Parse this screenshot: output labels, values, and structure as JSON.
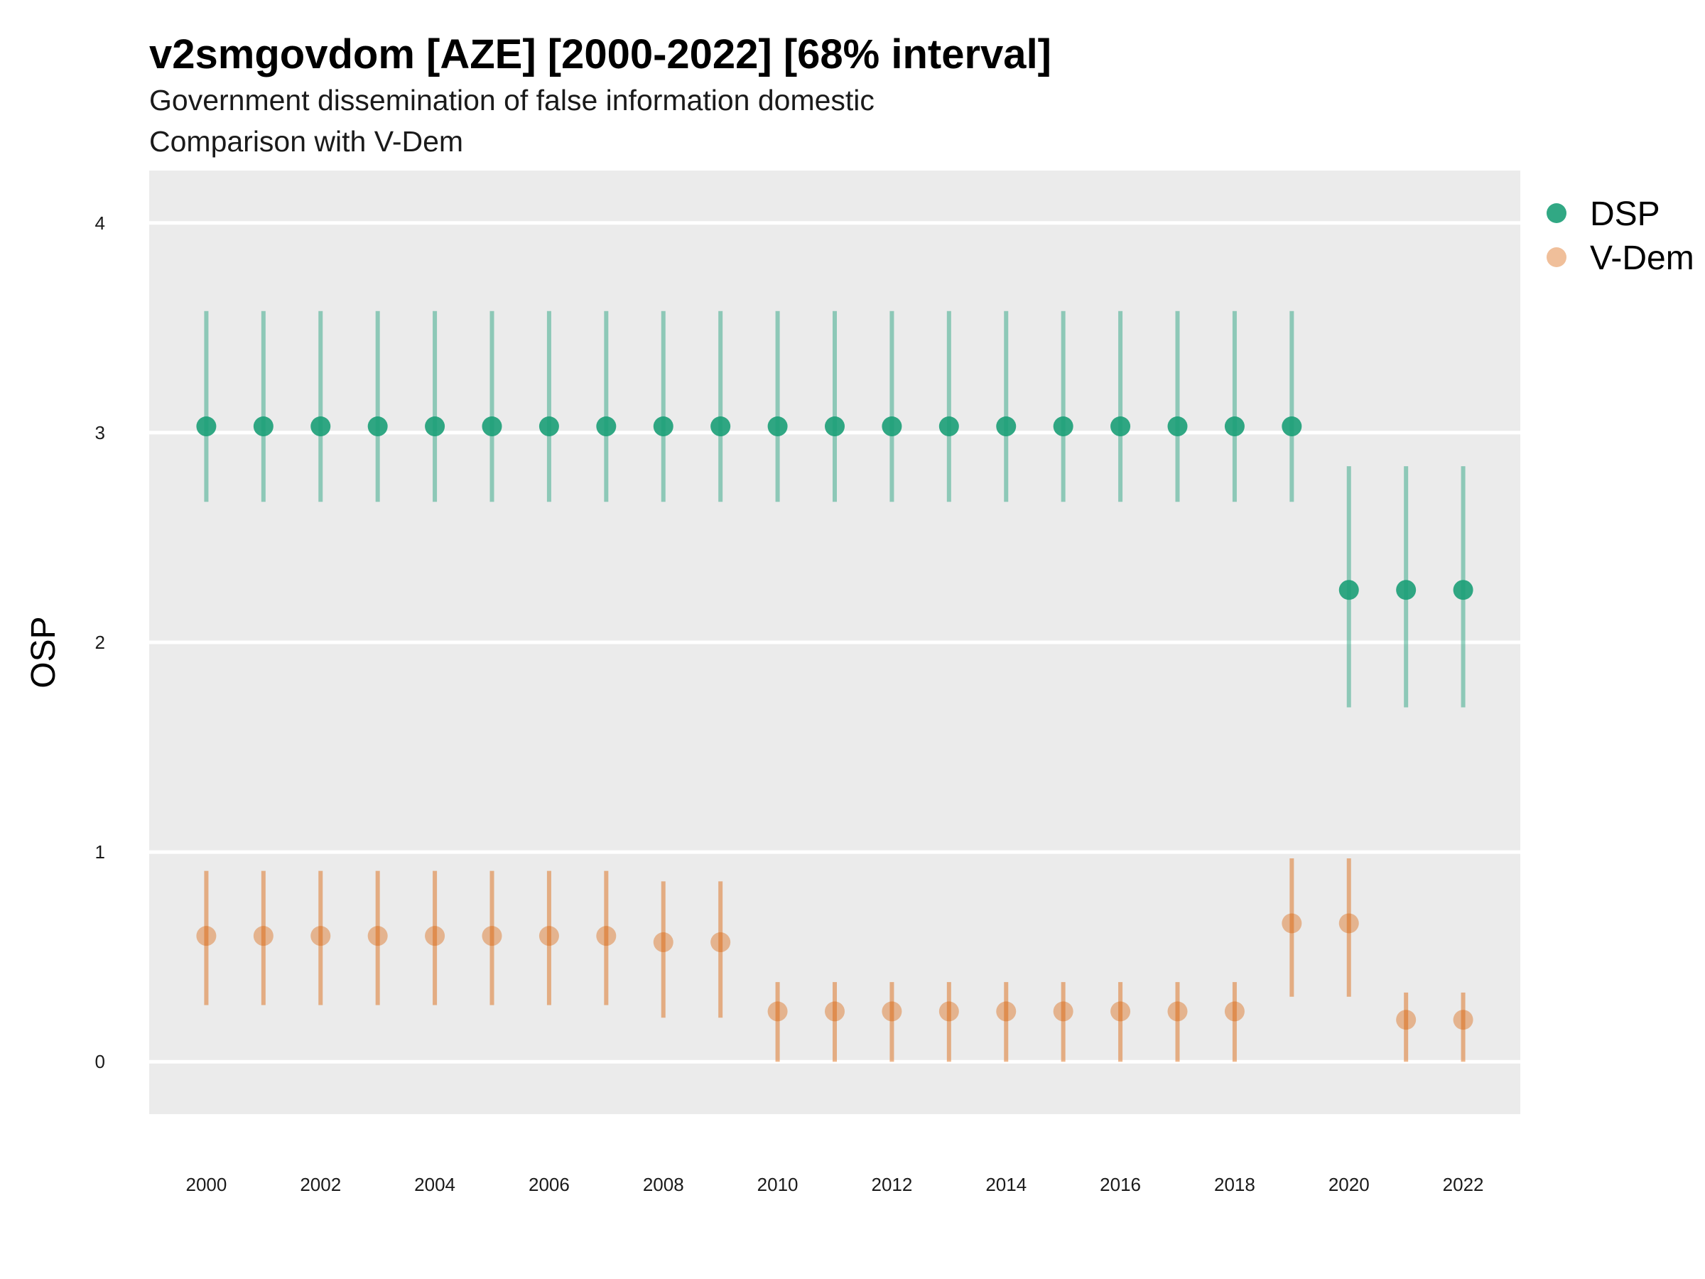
{
  "chart_data": {
    "type": "scatter",
    "title": "v2smgovdom [AZE] [2000-2022] [68% interval]",
    "subtitle": "Government dissemination of false information domestic",
    "caption_line": "Comparison with V-Dem",
    "xlabel": "",
    "ylabel": "OSP",
    "xlim": [
      1999.0,
      2023.0
    ],
    "ylim": [
      -0.25,
      4.25
    ],
    "y_ticks": [
      0,
      1,
      2,
      3,
      4
    ],
    "x_ticks": [
      2000,
      2002,
      2004,
      2006,
      2008,
      2010,
      2012,
      2014,
      2016,
      2018,
      2020,
      2022
    ],
    "grid": true,
    "legend_position": "right",
    "series": [
      {
        "name": "DSP",
        "color": "#1b9e77",
        "x": [
          2000,
          2001,
          2002,
          2003,
          2004,
          2005,
          2006,
          2007,
          2008,
          2009,
          2010,
          2011,
          2012,
          2013,
          2014,
          2015,
          2016,
          2017,
          2018,
          2019,
          2020,
          2021,
          2022
        ],
        "y": [
          3.03,
          3.03,
          3.03,
          3.03,
          3.03,
          3.03,
          3.03,
          3.03,
          3.03,
          3.03,
          3.03,
          3.03,
          3.03,
          3.03,
          3.03,
          3.03,
          3.03,
          3.03,
          3.03,
          3.03,
          2.25,
          2.25,
          2.25
        ],
        "lower": [
          2.67,
          2.67,
          2.67,
          2.67,
          2.67,
          2.67,
          2.67,
          2.67,
          2.67,
          2.67,
          2.67,
          2.67,
          2.67,
          2.67,
          2.67,
          2.67,
          2.67,
          2.67,
          2.67,
          2.67,
          1.69,
          1.69,
          1.69
        ],
        "upper": [
          3.58,
          3.58,
          3.58,
          3.58,
          3.58,
          3.58,
          3.58,
          3.58,
          3.58,
          3.58,
          3.58,
          3.58,
          3.58,
          3.58,
          3.58,
          3.58,
          3.58,
          3.58,
          3.58,
          3.58,
          2.84,
          2.84,
          2.84
        ]
      },
      {
        "name": "V-Dem",
        "color": "#d95f02",
        "x": [
          2000,
          2001,
          2002,
          2003,
          2004,
          2005,
          2006,
          2007,
          2008,
          2009,
          2010,
          2011,
          2012,
          2013,
          2014,
          2015,
          2016,
          2017,
          2018,
          2019,
          2020,
          2021,
          2022
        ],
        "y": [
          0.6,
          0.6,
          0.6,
          0.6,
          0.6,
          0.6,
          0.6,
          0.6,
          0.57,
          0.57,
          0.24,
          0.24,
          0.24,
          0.24,
          0.24,
          0.24,
          0.24,
          0.24,
          0.24,
          0.66,
          0.66,
          0.2,
          0.2
        ],
        "lower": [
          0.27,
          0.27,
          0.27,
          0.27,
          0.27,
          0.27,
          0.27,
          0.27,
          0.21,
          0.21,
          0.0,
          0.0,
          0.0,
          0.0,
          0.0,
          0.0,
          0.0,
          0.0,
          0.0,
          0.31,
          0.31,
          0.0,
          0.0
        ],
        "upper": [
          0.91,
          0.91,
          0.91,
          0.91,
          0.91,
          0.91,
          0.91,
          0.91,
          0.86,
          0.86,
          0.38,
          0.38,
          0.38,
          0.38,
          0.38,
          0.38,
          0.38,
          0.38,
          0.38,
          0.97,
          0.97,
          0.33,
          0.33
        ]
      }
    ]
  }
}
